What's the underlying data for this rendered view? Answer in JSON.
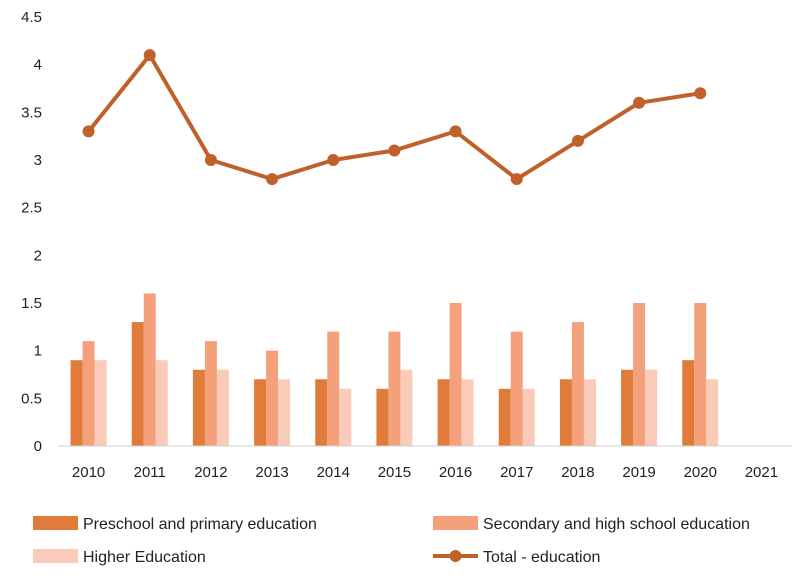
{
  "chart_data": {
    "type": "bar",
    "title": "",
    "xlabel": "",
    "ylabel": "",
    "categories": [
      "2010",
      "2011",
      "2012",
      "2013",
      "2014",
      "2015",
      "2016",
      "2017",
      "2018",
      "2019",
      "2020",
      "2021"
    ],
    "ylim": [
      0,
      4.5
    ],
    "yticks": [
      "0",
      "0.5",
      "1",
      "1.5",
      "2",
      "2.5",
      "3",
      "3.5",
      "4",
      "4.5"
    ],
    "grid": "none",
    "legend_position": "bottom",
    "series": [
      {
        "name": "Preschool and primary education",
        "kind": "bar",
        "color": "#e07b39",
        "values": [
          0.9,
          1.3,
          0.8,
          0.7,
          0.7,
          0.6,
          0.7,
          0.6,
          0.7,
          0.8,
          0.9,
          null
        ]
      },
      {
        "name": "Secondary and high school education",
        "kind": "bar",
        "color": "#f4a07b",
        "values": [
          1.1,
          1.6,
          1.1,
          1.0,
          1.2,
          1.2,
          1.5,
          1.2,
          1.3,
          1.5,
          1.5,
          null
        ]
      },
      {
        "name": "Higher Education",
        "kind": "bar",
        "color": "#f9cbb8",
        "values": [
          0.9,
          0.9,
          0.8,
          0.7,
          0.6,
          0.8,
          0.7,
          0.6,
          0.7,
          0.8,
          0.7,
          null
        ]
      },
      {
        "name": "Total - education",
        "kind": "line",
        "color": "#c0602a",
        "values": [
          3.3,
          4.1,
          3.0,
          2.8,
          3.0,
          3.1,
          3.3,
          2.8,
          3.2,
          3.6,
          3.7,
          null
        ]
      }
    ]
  }
}
